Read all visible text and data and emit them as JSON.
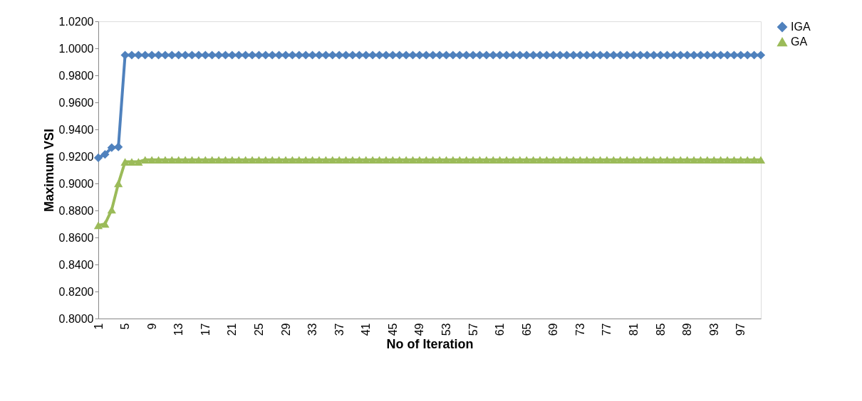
{
  "chart_data": {
    "type": "line",
    "xlabel": "No of Iteration",
    "ylabel": "Maximum VSI",
    "categories": [
      "1",
      null,
      null,
      null,
      "5",
      null,
      null,
      null,
      "9",
      null,
      null,
      null,
      "13",
      null,
      null,
      null,
      "17",
      null,
      null,
      null,
      "21",
      null,
      null,
      null,
      "25",
      null,
      null,
      null,
      "29",
      null,
      null,
      null,
      "33",
      null,
      null,
      null,
      "37",
      null,
      null,
      null,
      "41",
      null,
      null,
      null,
      "45",
      null,
      null,
      null,
      "49",
      null,
      null,
      null,
      "53",
      null,
      null,
      null,
      "57",
      null,
      null,
      null,
      "61",
      null,
      null,
      null,
      "65",
      null,
      null,
      null,
      "69",
      null,
      null,
      null,
      "73",
      null,
      null,
      null,
      "77",
      null,
      null,
      null,
      "81",
      null,
      null,
      null,
      "85",
      null,
      null,
      null,
      "89",
      null,
      null,
      null,
      "93",
      null,
      null,
      null,
      "97",
      null,
      null,
      null
    ],
    "series": [
      {
        "name": "IGA",
        "color": "#4f81bd",
        "marker": "diamond",
        "values": [
          0.919,
          0.9215,
          0.9265,
          0.927,
          0.995,
          0.995,
          0.995,
          0.995,
          0.995,
          0.995,
          0.995,
          0.995,
          0.995,
          0.995,
          0.995,
          0.995,
          0.995,
          0.995,
          0.995,
          0.995,
          0.995,
          0.995,
          0.995,
          0.995,
          0.995,
          0.995,
          0.995,
          0.995,
          0.995,
          0.995,
          0.995,
          0.995,
          0.995,
          0.995,
          0.995,
          0.995,
          0.995,
          0.995,
          0.995,
          0.995,
          0.995,
          0.995,
          0.995,
          0.995,
          0.995,
          0.995,
          0.995,
          0.995,
          0.995,
          0.995,
          0.995,
          0.995,
          0.995,
          0.995,
          0.995,
          0.995,
          0.995,
          0.995,
          0.995,
          0.995,
          0.995,
          0.995,
          0.995,
          0.995,
          0.995,
          0.995,
          0.995,
          0.995,
          0.995,
          0.995,
          0.995,
          0.995,
          0.995,
          0.995,
          0.995,
          0.995,
          0.995,
          0.995,
          0.995,
          0.995,
          0.995,
          0.995,
          0.995,
          0.995,
          0.995,
          0.995,
          0.995,
          0.995,
          0.995,
          0.995,
          0.995,
          0.995,
          0.995,
          0.995,
          0.995,
          0.995,
          0.995,
          0.995,
          0.995,
          0.995
        ]
      },
      {
        "name": "GA",
        "color": "#9bbb59",
        "marker": "triangle",
        "values": [
          0.869,
          0.87,
          0.8805,
          0.9,
          0.916,
          0.916,
          0.916,
          0.9175,
          0.9175,
          0.9175,
          0.9175,
          0.9175,
          0.9175,
          0.9175,
          0.9175,
          0.9175,
          0.9175,
          0.9175,
          0.9175,
          0.9175,
          0.9175,
          0.9175,
          0.9175,
          0.9175,
          0.9175,
          0.9175,
          0.9175,
          0.9175,
          0.9175,
          0.9175,
          0.9175,
          0.9175,
          0.9175,
          0.9175,
          0.9175,
          0.9175,
          0.9175,
          0.9175,
          0.9175,
          0.9175,
          0.9175,
          0.9175,
          0.9175,
          0.9175,
          0.9175,
          0.9175,
          0.9175,
          0.9175,
          0.9175,
          0.9175,
          0.9175,
          0.9175,
          0.9175,
          0.9175,
          0.9175,
          0.9175,
          0.9175,
          0.9175,
          0.9175,
          0.9175,
          0.9175,
          0.9175,
          0.9175,
          0.9175,
          0.9175,
          0.9175,
          0.9175,
          0.9175,
          0.9175,
          0.9175,
          0.9175,
          0.9175,
          0.9175,
          0.9175,
          0.9175,
          0.9175,
          0.9175,
          0.9175,
          0.9175,
          0.9175,
          0.9175,
          0.9175,
          0.9175,
          0.9175,
          0.9175,
          0.9175,
          0.9175,
          0.9175,
          0.9175,
          0.9175,
          0.9175,
          0.9175,
          0.9175,
          0.9175,
          0.9175,
          0.9175,
          0.9175,
          0.9175,
          0.9175,
          0.9175
        ]
      }
    ],
    "ylim": [
      0.8,
      1.02
    ],
    "yticks": [
      {
        "value": 0.8,
        "label": "0.8000"
      },
      {
        "value": 0.82,
        "label": "0.8200"
      },
      {
        "value": 0.84,
        "label": "0.8400"
      },
      {
        "value": 0.86,
        "label": "0.8600"
      },
      {
        "value": 0.88,
        "label": "0.8800"
      },
      {
        "value": 0.9,
        "label": "0.9000"
      },
      {
        "value": 0.92,
        "label": "0.9200"
      },
      {
        "value": 0.94,
        "label": "0.9400"
      },
      {
        "value": 0.96,
        "label": "0.9600"
      },
      {
        "value": 0.98,
        "label": "0.9800"
      },
      {
        "value": 1.0,
        "label": "1.0000"
      },
      {
        "value": 1.02,
        "label": "1.0200"
      }
    ],
    "grid": false,
    "legend": "right",
    "line_style": "solid"
  }
}
